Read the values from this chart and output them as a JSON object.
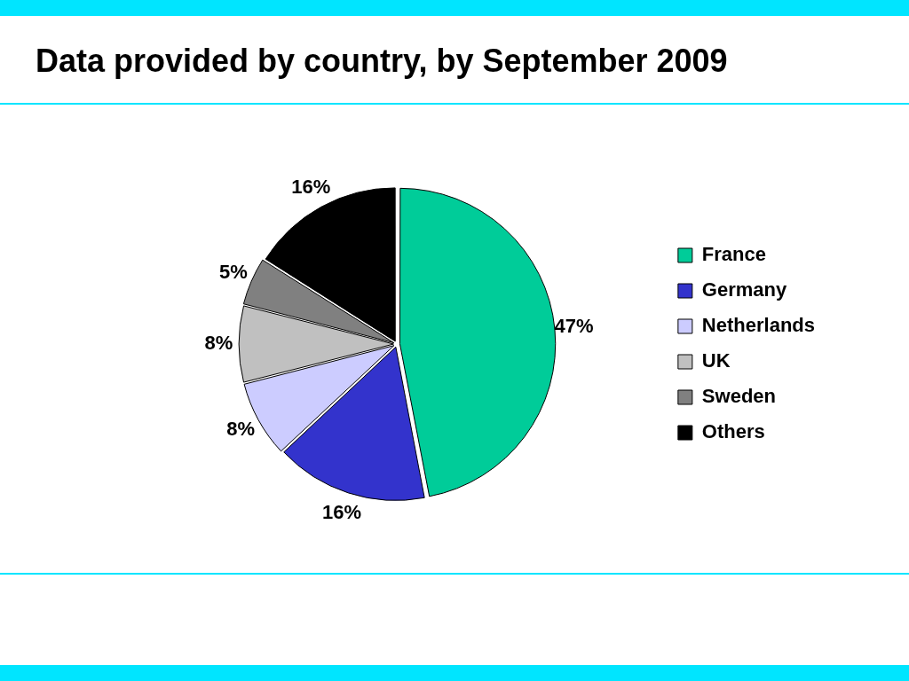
{
  "chart_data": {
    "type": "pie",
    "title": "Data provided by country, by September 2009",
    "categories": [
      "France",
      "Germany",
      "Netherlands",
      "UK",
      "Sweden",
      "Others"
    ],
    "values": [
      47,
      16,
      8,
      8,
      5,
      16
    ],
    "colors": [
      "#00cc99",
      "#3333cc",
      "#ccccff",
      "#c0c0c0",
      "#808080",
      "#000000"
    ],
    "value_labels": [
      "47%",
      "16%",
      "8%",
      "8%",
      "5%",
      "16%"
    ],
    "legend": "right"
  }
}
